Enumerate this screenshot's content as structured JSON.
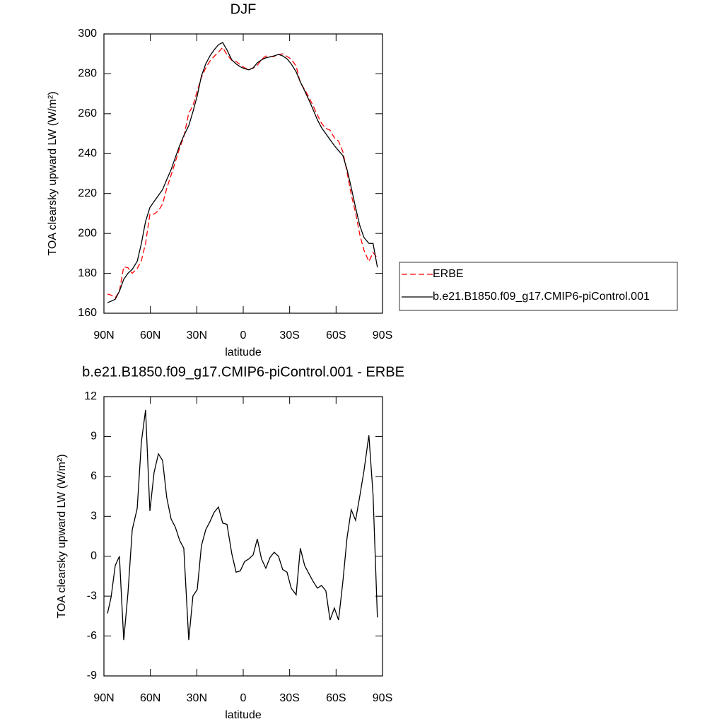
{
  "chart_data": [
    {
      "type": "line",
      "title": "DJF",
      "x_label": "latitude",
      "y_label": "TOA clearsky upward LW (W/m²)",
      "xlim": [
        90,
        -90
      ],
      "xticks": [
        {
          "value": 90,
          "label": "90N"
        },
        {
          "value": 60,
          "label": "60N"
        },
        {
          "value": 30,
          "label": "30N"
        },
        0,
        {
          "value": -30,
          "label": "30S"
        },
        {
          "value": -60,
          "label": "60S"
        },
        {
          "value": -90,
          "label": "90S"
        }
      ],
      "ylim": [
        160,
        300
      ],
      "yticks": [
        160,
        180,
        200,
        220,
        240,
        260,
        280,
        300
      ],
      "legend": "right",
      "x": [
        87.7,
        85.4,
        82.7,
        80,
        77.2,
        74.5,
        71.7,
        68.5,
        65.8,
        63.1,
        60.3,
        57.6,
        54.8,
        52.1,
        49.4,
        46.6,
        43.9,
        41.1,
        38.4,
        35.2,
        32.5,
        29.7,
        27,
        24.2,
        21.5,
        18.8,
        16,
        13.3,
        10.5,
        7.4,
        4.6,
        1.9,
        -0.9,
        -3.7,
        -6.4,
        -9.1,
        -11.8,
        -14.6,
        -17.3,
        -20,
        -22.8,
        -25.5,
        -28.3,
        -31,
        -34.2,
        -36.9,
        -39.7,
        -42.4,
        -45.2,
        -47.9,
        -50.6,
        -53.4,
        -56.1,
        -58.9,
        -61.6,
        -64.4,
        -67.1,
        -69.8,
        -72.6,
        -75.3,
        -78,
        -81.2,
        -83.9,
        -86.7
      ],
      "series": [
        {
          "name": "ERBE",
          "color": "#ff0000",
          "style": "dashed",
          "values": [
            169.6,
            169.1,
            167.7,
            171,
            183.3,
            182.8,
            180,
            182.4,
            186.4,
            195,
            209.6,
            209.7,
            211.3,
            214.8,
            222.6,
            229.2,
            235.8,
            242.8,
            248.4,
            260.3,
            264,
            271.5,
            278.2,
            283,
            286.4,
            288.7,
            290.9,
            293.2,
            289.6,
            286.8,
            286.2,
            284.6,
            283,
            282.2,
            282.9,
            284.2,
            287.2,
            288.9,
            288.6,
            288.7,
            289.7,
            290,
            288.7,
            287.4,
            283.9,
            275.4,
            272.2,
            268.3,
            263.9,
            259.4,
            255.2,
            252.6,
            251.8,
            247.9,
            246.3,
            240.9,
            230.6,
            219.5,
            210.3,
            199.5,
            191.6,
            185.9,
            190.4,
            187.6
          ]
        },
        {
          "name": "b.e21.B1850.f09_g17.CMIP6-piControl.001",
          "color": "#000000",
          "style": "solid",
          "values": [
            165.3,
            166,
            167,
            171,
            177,
            180,
            182,
            186,
            195,
            206,
            213,
            216,
            219,
            222,
            227,
            232,
            238,
            244,
            249,
            254,
            261,
            269,
            279,
            285,
            289,
            292,
            294.6,
            295.7,
            292,
            287,
            285,
            283.5,
            282.6,
            282,
            283,
            285.5,
            287,
            288,
            288.5,
            289,
            289.7,
            289,
            287.5,
            285,
            281,
            276,
            271.5,
            267,
            262,
            257,
            253,
            250,
            247,
            244,
            241.5,
            239,
            232,
            223,
            213,
            204,
            198,
            195,
            195,
            183
          ]
        }
      ]
    },
    {
      "type": "line",
      "title": "b.e21.B1850.f09_g17.CMIP6-piControl.001 - ERBE",
      "x_label": "latitude",
      "y_label": "TOA clearsky upward LW (W/m²)",
      "xlim": [
        90,
        -90
      ],
      "xticks": [
        {
          "value": 90,
          "label": "90N"
        },
        {
          "value": 60,
          "label": "60N"
        },
        {
          "value": 30,
          "label": "30N"
        },
        0,
        {
          "value": -30,
          "label": "30S"
        },
        {
          "value": -60,
          "label": "60S"
        },
        {
          "value": -90,
          "label": "90S"
        }
      ],
      "ylim": [
        -9,
        12
      ],
      "yticks": [
        -9,
        -6,
        -3,
        0,
        3,
        6,
        9,
        12
      ],
      "x": [
        87.7,
        85.4,
        82.7,
        80,
        77.2,
        74.5,
        71.7,
        68.5,
        65.8,
        63.1,
        60.3,
        57.6,
        54.8,
        52.1,
        49.4,
        46.6,
        43.9,
        41.1,
        38.4,
        35.2,
        32.5,
        29.7,
        27,
        24.2,
        21.5,
        18.8,
        16,
        13.3,
        10.5,
        7.4,
        4.6,
        1.9,
        -0.9,
        -3.7,
        -6.4,
        -9.1,
        -11.8,
        -14.6,
        -17.3,
        -20,
        -22.8,
        -25.5,
        -28.3,
        -31,
        -34.2,
        -36.9,
        -39.7,
        -42.4,
        -45.2,
        -47.9,
        -50.6,
        -53.4,
        -56.1,
        -58.9,
        -61.6,
        -64.4,
        -67.1,
        -69.8,
        -72.6,
        -75.3,
        -78,
        -81.2,
        -83.9,
        -86.7
      ],
      "color": "#000000",
      "values": [
        -4.3,
        -3.1,
        -0.7,
        0,
        -6.3,
        -2.8,
        2,
        3.6,
        8.6,
        11,
        3.4,
        6.3,
        7.7,
        7.2,
        4.4,
        2.8,
        2.2,
        1.2,
        0.6,
        -6.3,
        -3,
        -2.5,
        0.8,
        2,
        2.6,
        3.3,
        3.7,
        2.5,
        2.4,
        0.2,
        -1.2,
        -1.1,
        -0.4,
        -0.2,
        0.1,
        1.3,
        -0.2,
        -0.9,
        -0.1,
        0.3,
        0,
        -1,
        -1.2,
        -2.4,
        -2.9,
        0.6,
        -0.7,
        -1.3,
        -1.9,
        -2.4,
        -2.2,
        -2.6,
        -4.8,
        -3.9,
        -4.8,
        -1.9,
        1.4,
        3.5,
        2.7,
        4.5,
        6.4,
        9.1,
        4.6,
        -4.6
      ]
    }
  ]
}
